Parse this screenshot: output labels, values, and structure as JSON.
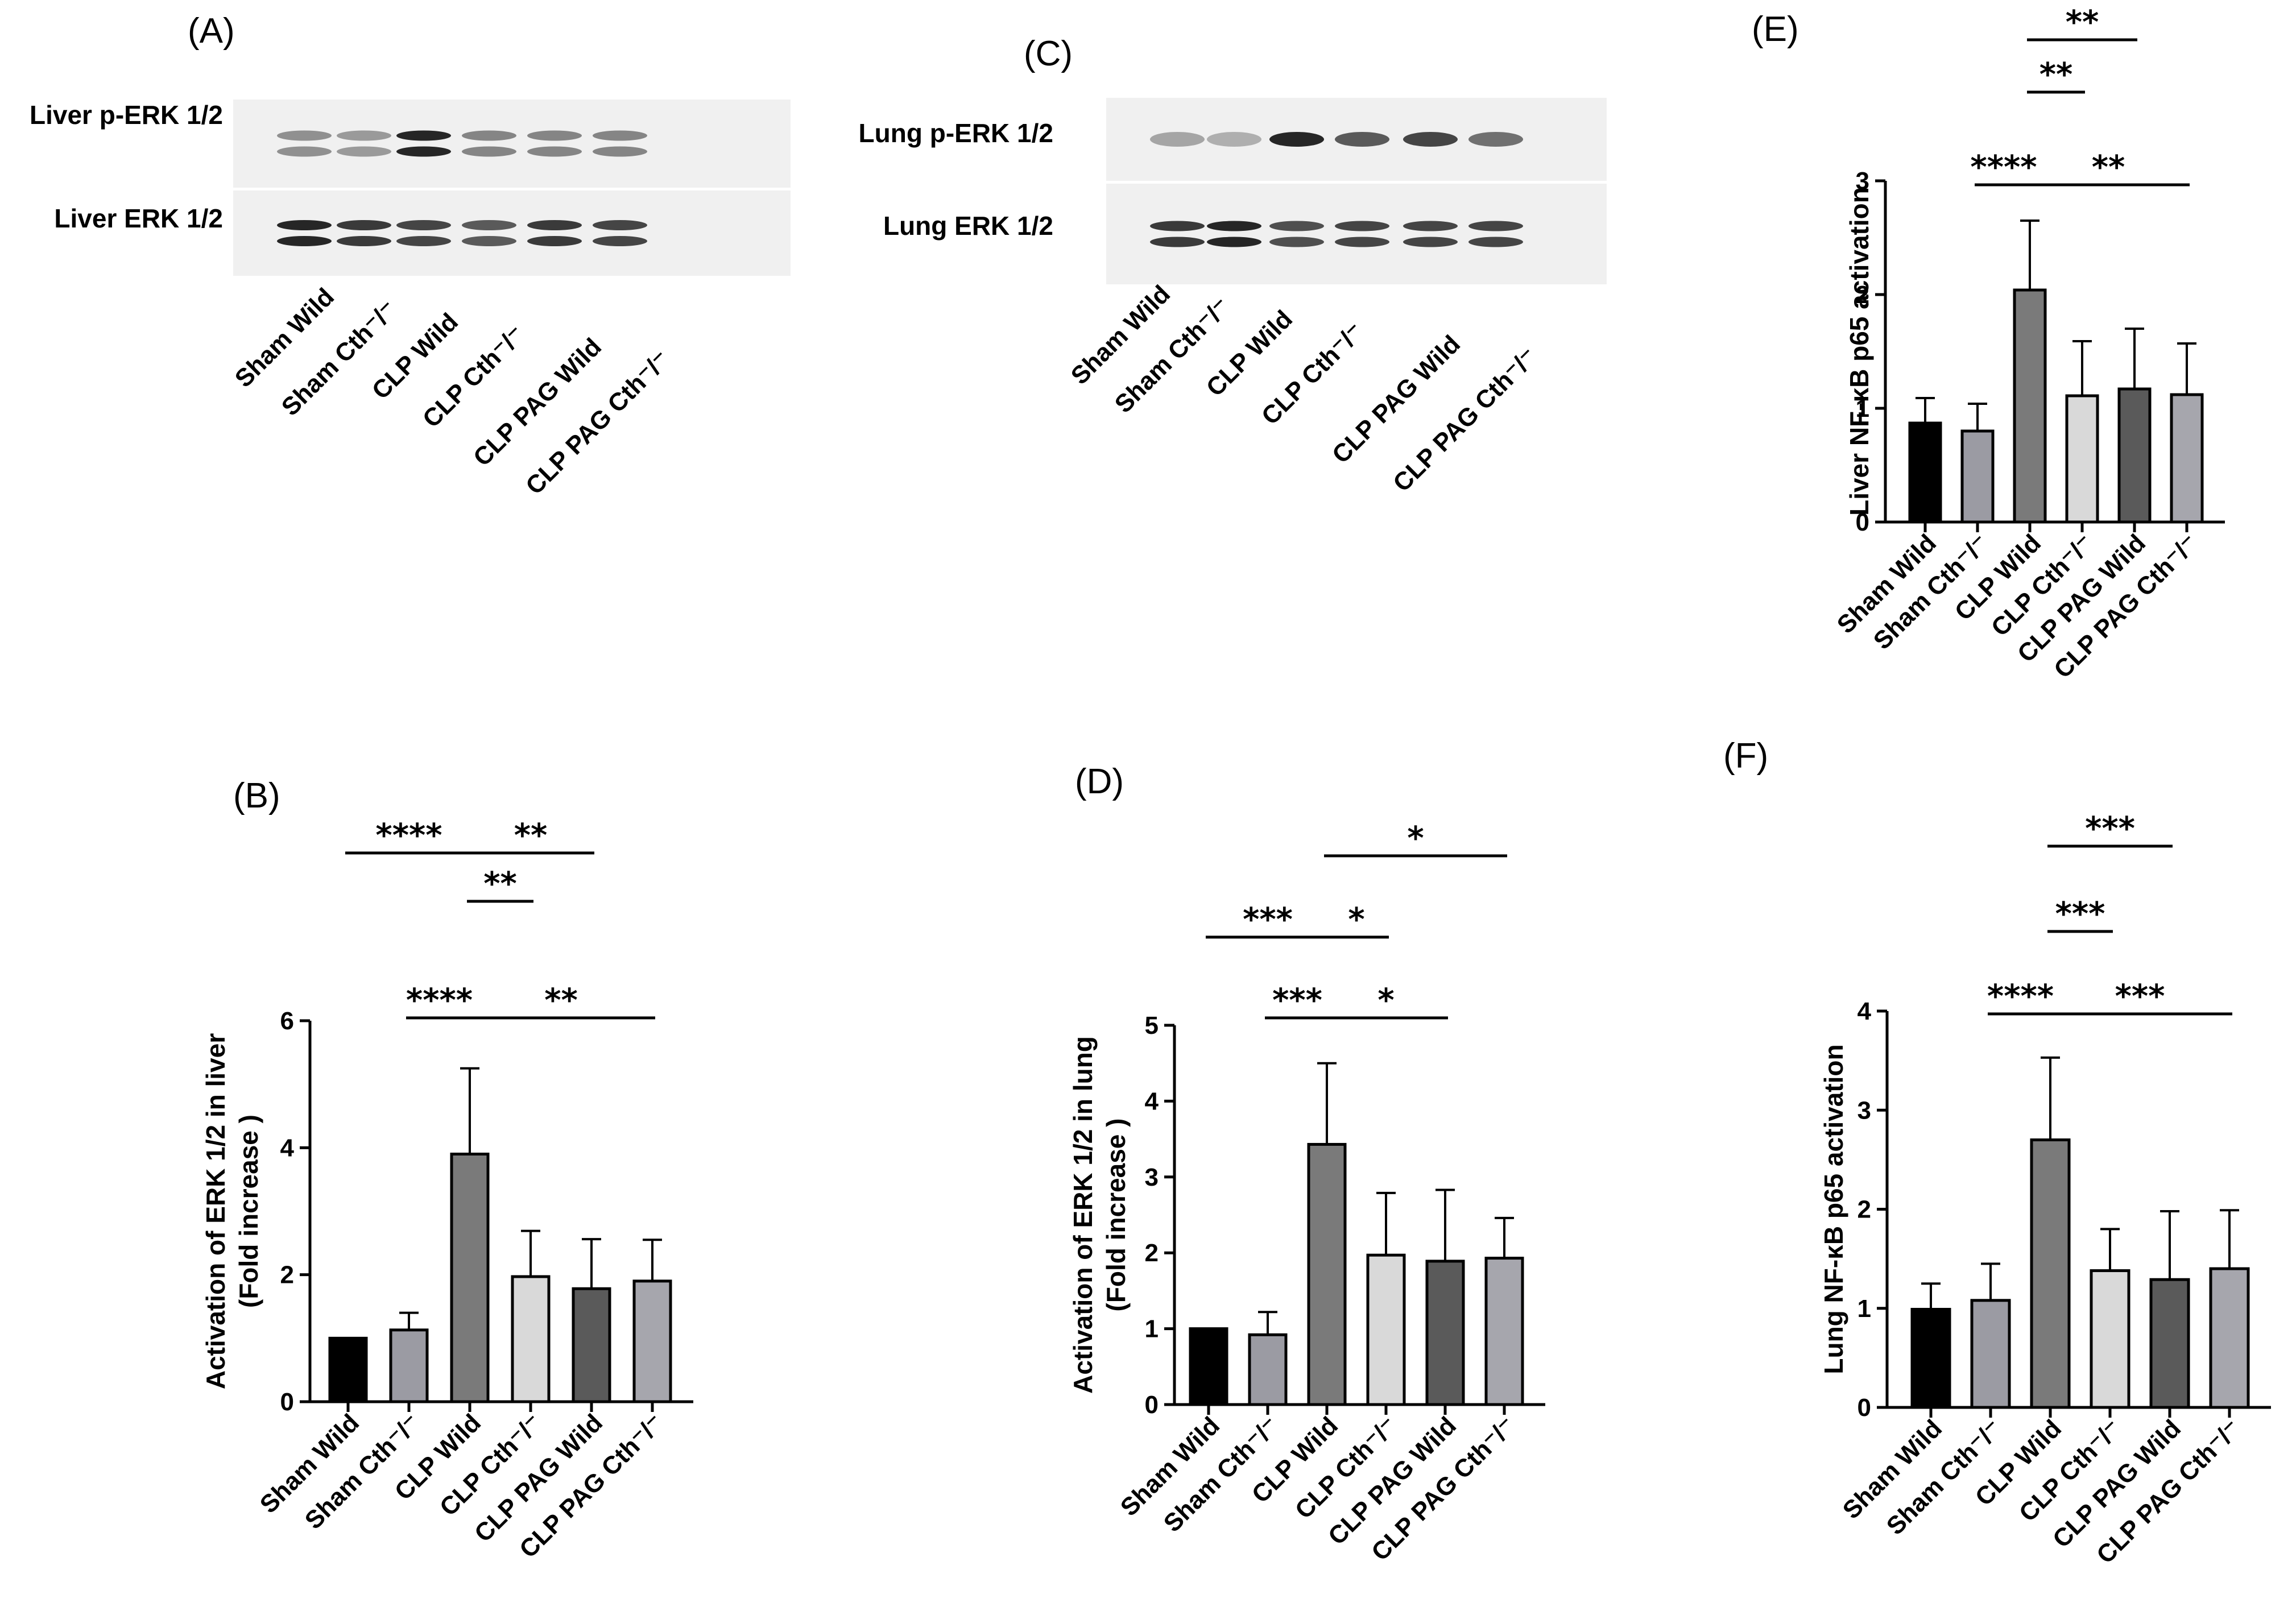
{
  "groups": [
    "Sham Wild",
    "Sham Cth⁻/⁻",
    "CLP Wild",
    "CLP Cth⁻/⁻",
    "CLP PAG Wild",
    "CLP PAG Cth⁻/⁻"
  ],
  "colors": {
    "bars": [
      "#000000",
      "#9b9ba3",
      "#7a7a7a",
      "#d9d9d9",
      "#5a5a5a",
      "#a6a6ad"
    ],
    "blot_background": "#f0f0f0",
    "band": "#1a1a1a"
  },
  "blots": [
    {
      "letter": "(A)",
      "rows": [
        {
          "label": "Liver p-ERK 1/2",
          "intensity": [
            0.45,
            0.4,
            0.95,
            0.5,
            0.5,
            0.5
          ]
        },
        {
          "label": "Liver ERK 1/2",
          "intensity": [
            0.95,
            0.85,
            0.8,
            0.7,
            0.85,
            0.8
          ]
        }
      ],
      "lanes": [
        "Sham Wild",
        "Sham Cth⁻/⁻",
        "CLP Wild",
        "CLP Cth⁻/⁻",
        "CLP PAG Wild",
        "CLP PAG Cth⁻/⁻"
      ]
    },
    {
      "letter": "(C)",
      "rows": [
        {
          "label": "Lung p-ERK 1/2",
          "intensity": [
            0.35,
            0.3,
            0.95,
            0.7,
            0.8,
            0.6
          ]
        },
        {
          "label": "Lung ERK 1/2",
          "intensity": [
            0.85,
            0.95,
            0.75,
            0.8,
            0.8,
            0.8
          ]
        }
      ],
      "lanes": [
        "Sham Wild",
        "Sham Cth⁻/⁻",
        "CLP Wild",
        "CLP Cth⁻/⁻",
        "CLP PAG Wild",
        "CLP PAG Cth⁻/⁻"
      ]
    }
  ],
  "chart_data": [
    {
      "letter": "(B)",
      "type": "bar",
      "categories": [
        "Sham Wild",
        "Sham Cth⁻/⁻",
        "CLP Wild",
        "CLP Cth⁻/⁻",
        "CLP PAG Wild",
        "CLP PAG Cth⁻/⁻"
      ],
      "values": [
        1.0,
        1.13,
        3.9,
        1.97,
        1.78,
        1.9
      ],
      "errors": [
        0,
        0.27,
        1.35,
        0.72,
        0.78,
        0.65
      ],
      "ylabel": [
        "Activation of ERK 1/2 in liver",
        "(Fold increase )"
      ],
      "ylim": [
        0,
        6
      ],
      "yticks": [
        0,
        2,
        4,
        6
      ],
      "significance": [
        {
          "from": 0,
          "to": 2,
          "label": "****"
        },
        {
          "from": 2,
          "to": 4,
          "label": "**"
        },
        {
          "from": 2,
          "to": 3,
          "label": "**"
        },
        {
          "from": 1,
          "to": 2,
          "label": "****"
        },
        {
          "from": 2,
          "to": 5,
          "label": "**"
        }
      ]
    },
    {
      "letter": "(D)",
      "type": "bar",
      "categories": [
        "Sham Wild",
        "Sham Cth⁻/⁻",
        "CLP Wild",
        "CLP Cth⁻/⁻",
        "CLP PAG Wild",
        "CLP PAG Cth⁻/⁻"
      ],
      "values": [
        1.0,
        0.92,
        3.43,
        1.97,
        1.89,
        1.93
      ],
      "errors": [
        0,
        0.3,
        1.07,
        0.82,
        0.94,
        0.53
      ],
      "ylabel": [
        "Activation of ERK 1/2 in lung",
        "(Fold increase )"
      ],
      "ylim": [
        0,
        5
      ],
      "yticks": [
        0,
        1,
        2,
        3,
        4,
        5
      ],
      "significance": [
        {
          "from": 2,
          "to": 5,
          "label": "*"
        },
        {
          "from": 0,
          "to": 2,
          "label": "***"
        },
        {
          "from": 2,
          "to": 3,
          "label": "*"
        },
        {
          "from": 1,
          "to": 2,
          "label": "***"
        },
        {
          "from": 2,
          "to": 4,
          "label": "*"
        }
      ]
    },
    {
      "letter": "(E)",
      "type": "bar",
      "categories": [
        "Sham Wild",
        "Sham Cth⁻/⁻",
        "CLP Wild",
        "CLP Cth⁻/⁻",
        "CLP PAG Wild",
        "CLP PAG Cth⁻/⁻"
      ],
      "values": [
        0.87,
        0.8,
        2.04,
        1.11,
        1.17,
        1.12
      ],
      "errors": [
        0.22,
        0.24,
        0.61,
        0.48,
        0.53,
        0.45
      ],
      "ylabel": [
        "Liver NF-κB p65 activation"
      ],
      "ylim": [
        0,
        3
      ],
      "yticks": [
        0,
        1,
        2,
        3
      ],
      "significance": [
        {
          "from": 2,
          "to": 4,
          "label": "**"
        },
        {
          "from": 2,
          "to": 3,
          "label": "**"
        },
        {
          "from": 1,
          "to": 2,
          "label": "****"
        },
        {
          "from": 2,
          "to": 5,
          "label": "**"
        }
      ]
    },
    {
      "letter": "(F)",
      "type": "bar",
      "categories": [
        "Sham Wild",
        "Sham Cth⁻/⁻",
        "CLP Wild",
        "CLP Cth⁻/⁻",
        "CLP PAG Wild",
        "CLP PAG Cth⁻/⁻"
      ],
      "values": [
        0.99,
        1.08,
        2.7,
        1.38,
        1.29,
        1.4
      ],
      "errors": [
        0.26,
        0.37,
        0.83,
        0.42,
        0.69,
        0.59
      ],
      "ylabel": [
        "Lung  NF-κB p65 activation"
      ],
      "ylim": [
        0,
        4
      ],
      "yticks": [
        0,
        1,
        2,
        3,
        4
      ],
      "significance": [
        {
          "from": 2,
          "to": 4,
          "label": "***"
        },
        {
          "from": 2,
          "to": 3,
          "label": "***"
        },
        {
          "from": 1,
          "to": 2,
          "label": "****"
        },
        {
          "from": 2,
          "to": 5,
          "label": "***"
        }
      ]
    }
  ]
}
